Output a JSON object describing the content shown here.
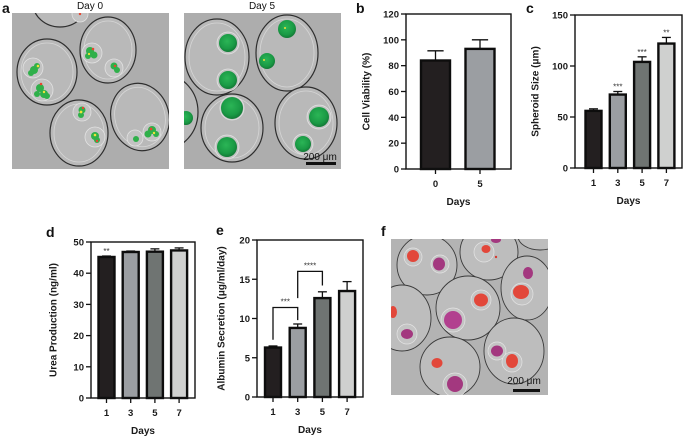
{
  "figure": {
    "panel_labels": {
      "a": "a",
      "b": "b",
      "c": "c",
      "d": "d",
      "e": "e",
      "f": "f"
    },
    "panel_a": {
      "day0_title": "Day 0",
      "day5_title": "Day 5",
      "scale_bar_label": "200 μm"
    },
    "panel_f": {
      "scale_bar_label": "200 μm"
    }
  },
  "chart_data": [
    {
      "panel": "b",
      "type": "bar",
      "title": "",
      "categories": [
        "0",
        "5"
      ],
      "values": [
        84,
        93
      ],
      "errors_upper": [
        91.5,
        100
      ],
      "ylim": [
        0,
        120
      ],
      "yticks": [
        0,
        20,
        40,
        60,
        80,
        100,
        120
      ],
      "xlabel": "Days",
      "ylabel": "Cell Viability (%)",
      "colors": [
        "#231f20",
        "#9b9ea2"
      ],
      "significance": [
        "",
        ""
      ],
      "brackets": [],
      "grid": false
    },
    {
      "panel": "c",
      "type": "bar",
      "title": "",
      "categories": [
        "1",
        "3",
        "5",
        "7"
      ],
      "values": [
        56,
        72,
        104,
        122
      ],
      "errors_upper": [
        58,
        75,
        109,
        128
      ],
      "ylim": [
        0,
        150
      ],
      "yticks": [
        0,
        50,
        100,
        150
      ],
      "xlabel": "Days",
      "ylabel": "Spheroid Size (μm)",
      "colors": [
        "#231f20",
        "#9b9ea2",
        "#6f7472",
        "#cfd0cf"
      ],
      "significance": [
        "",
        "***",
        "***",
        "**"
      ],
      "brackets": [],
      "grid": false
    },
    {
      "panel": "d",
      "type": "bar",
      "title": "",
      "categories": [
        "1",
        "3",
        "5",
        "7"
      ],
      "values": [
        45.2,
        46.8,
        46.9,
        47.3
      ],
      "errors_upper": [
        45.5,
        47.1,
        47.8,
        48.1
      ],
      "ylim": [
        0,
        50
      ],
      "yticks": [
        0,
        10,
        20,
        30,
        40,
        50
      ],
      "xlabel": "Days",
      "ylabel": "Urea Production (ng/ml)",
      "colors": [
        "#231f20",
        "#9b9ea2",
        "#6f7472",
        "#cfd0cf"
      ],
      "significance": [
        "**",
        "",
        "",
        ""
      ],
      "brackets": [],
      "grid": false
    },
    {
      "panel": "e",
      "type": "bar",
      "title": "",
      "categories": [
        "1",
        "3",
        "5",
        "7"
      ],
      "values": [
        6.3,
        8.8,
        12.6,
        13.5
      ],
      "errors_upper": [
        6.5,
        9.3,
        13.4,
        14.7
      ],
      "ylim": [
        0,
        20
      ],
      "yticks": [
        0,
        5,
        10,
        15,
        20
      ],
      "xlabel": "Days",
      "ylabel": "Albumin Secretion (μg/ml/day)",
      "colors": [
        "#231f20",
        "#9b9ea2",
        "#6f7472",
        "#cfd0cf"
      ],
      "significance": [
        "",
        "",
        "",
        ""
      ],
      "brackets": [
        {
          "from": 0,
          "to": 1,
          "label": "***",
          "top": 11.4,
          "left_bottom": 7.3,
          "right_bottom": 9.8
        },
        {
          "from": 1,
          "to": 2,
          "label": "****",
          "top": 16.0,
          "left_bottom": 12.6,
          "right_bottom": 14.2
        }
      ],
      "grid": false
    }
  ]
}
